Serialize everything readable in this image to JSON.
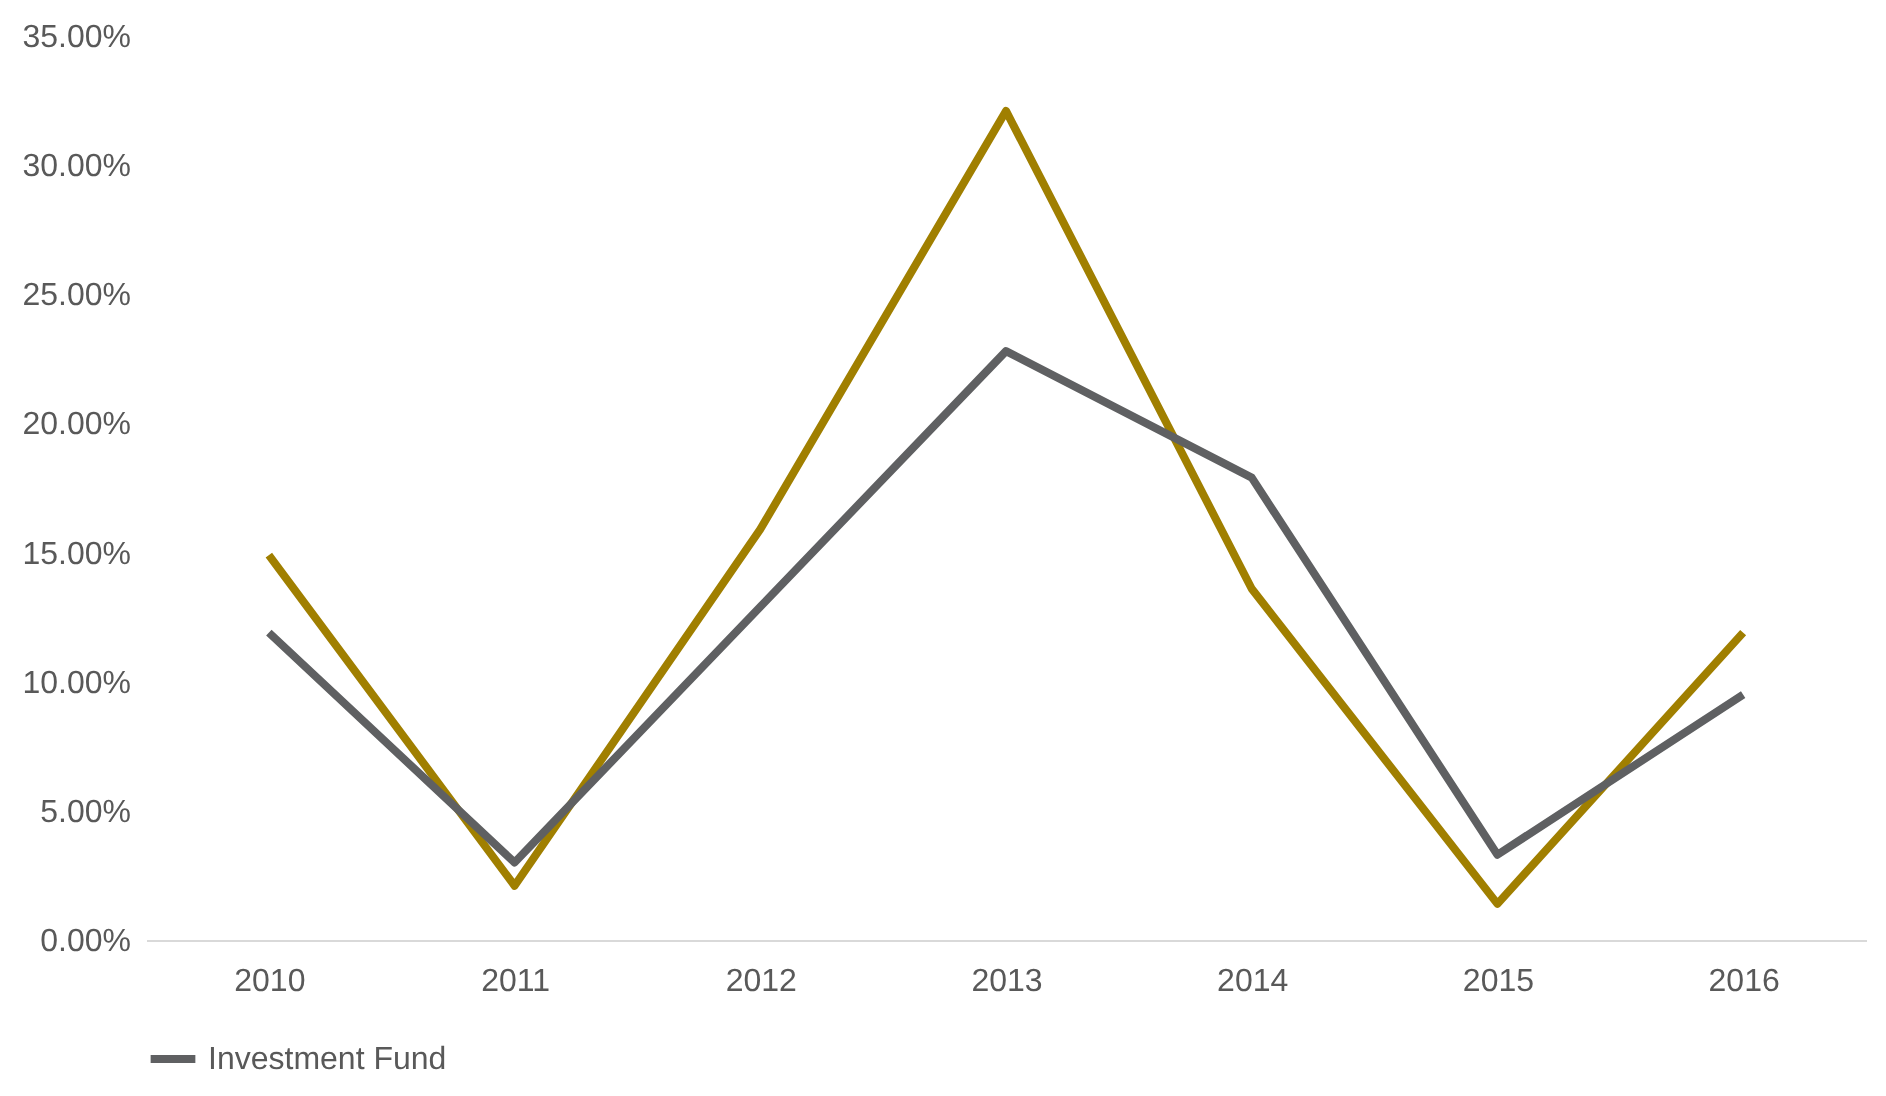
{
  "chart_data": {
    "type": "line",
    "categories": [
      "2010",
      "2011",
      "2012",
      "2013",
      "2014",
      "2015",
      "2016"
    ],
    "series": [
      {
        "color": "#a07f00",
        "values": [
          14.9,
          2.1,
          15.9,
          32.1,
          13.6,
          1.4,
          11.9
        ]
      },
      {
        "name": "Investment Fund",
        "color": "#5f6062",
        "values": [
          11.9,
          3.0,
          12.9,
          22.8,
          17.9,
          3.3,
          9.5
        ]
      }
    ],
    "ylim": [
      0,
      35
    ],
    "yticks": [
      {
        "value": 0,
        "label": "0.00%"
      },
      {
        "value": 5,
        "label": "5.00%"
      },
      {
        "value": 10,
        "label": "10.00%"
      },
      {
        "value": 15,
        "label": "15.00%"
      },
      {
        "value": 20,
        "label": "20.00%"
      },
      {
        "value": 25,
        "label": "25.00%"
      },
      {
        "value": 30,
        "label": "30.00%"
      },
      {
        "value": 35,
        "label": "35.00%"
      }
    ],
    "grid": false,
    "legend": "bottom",
    "marker": "none",
    "line_style": "solid"
  }
}
